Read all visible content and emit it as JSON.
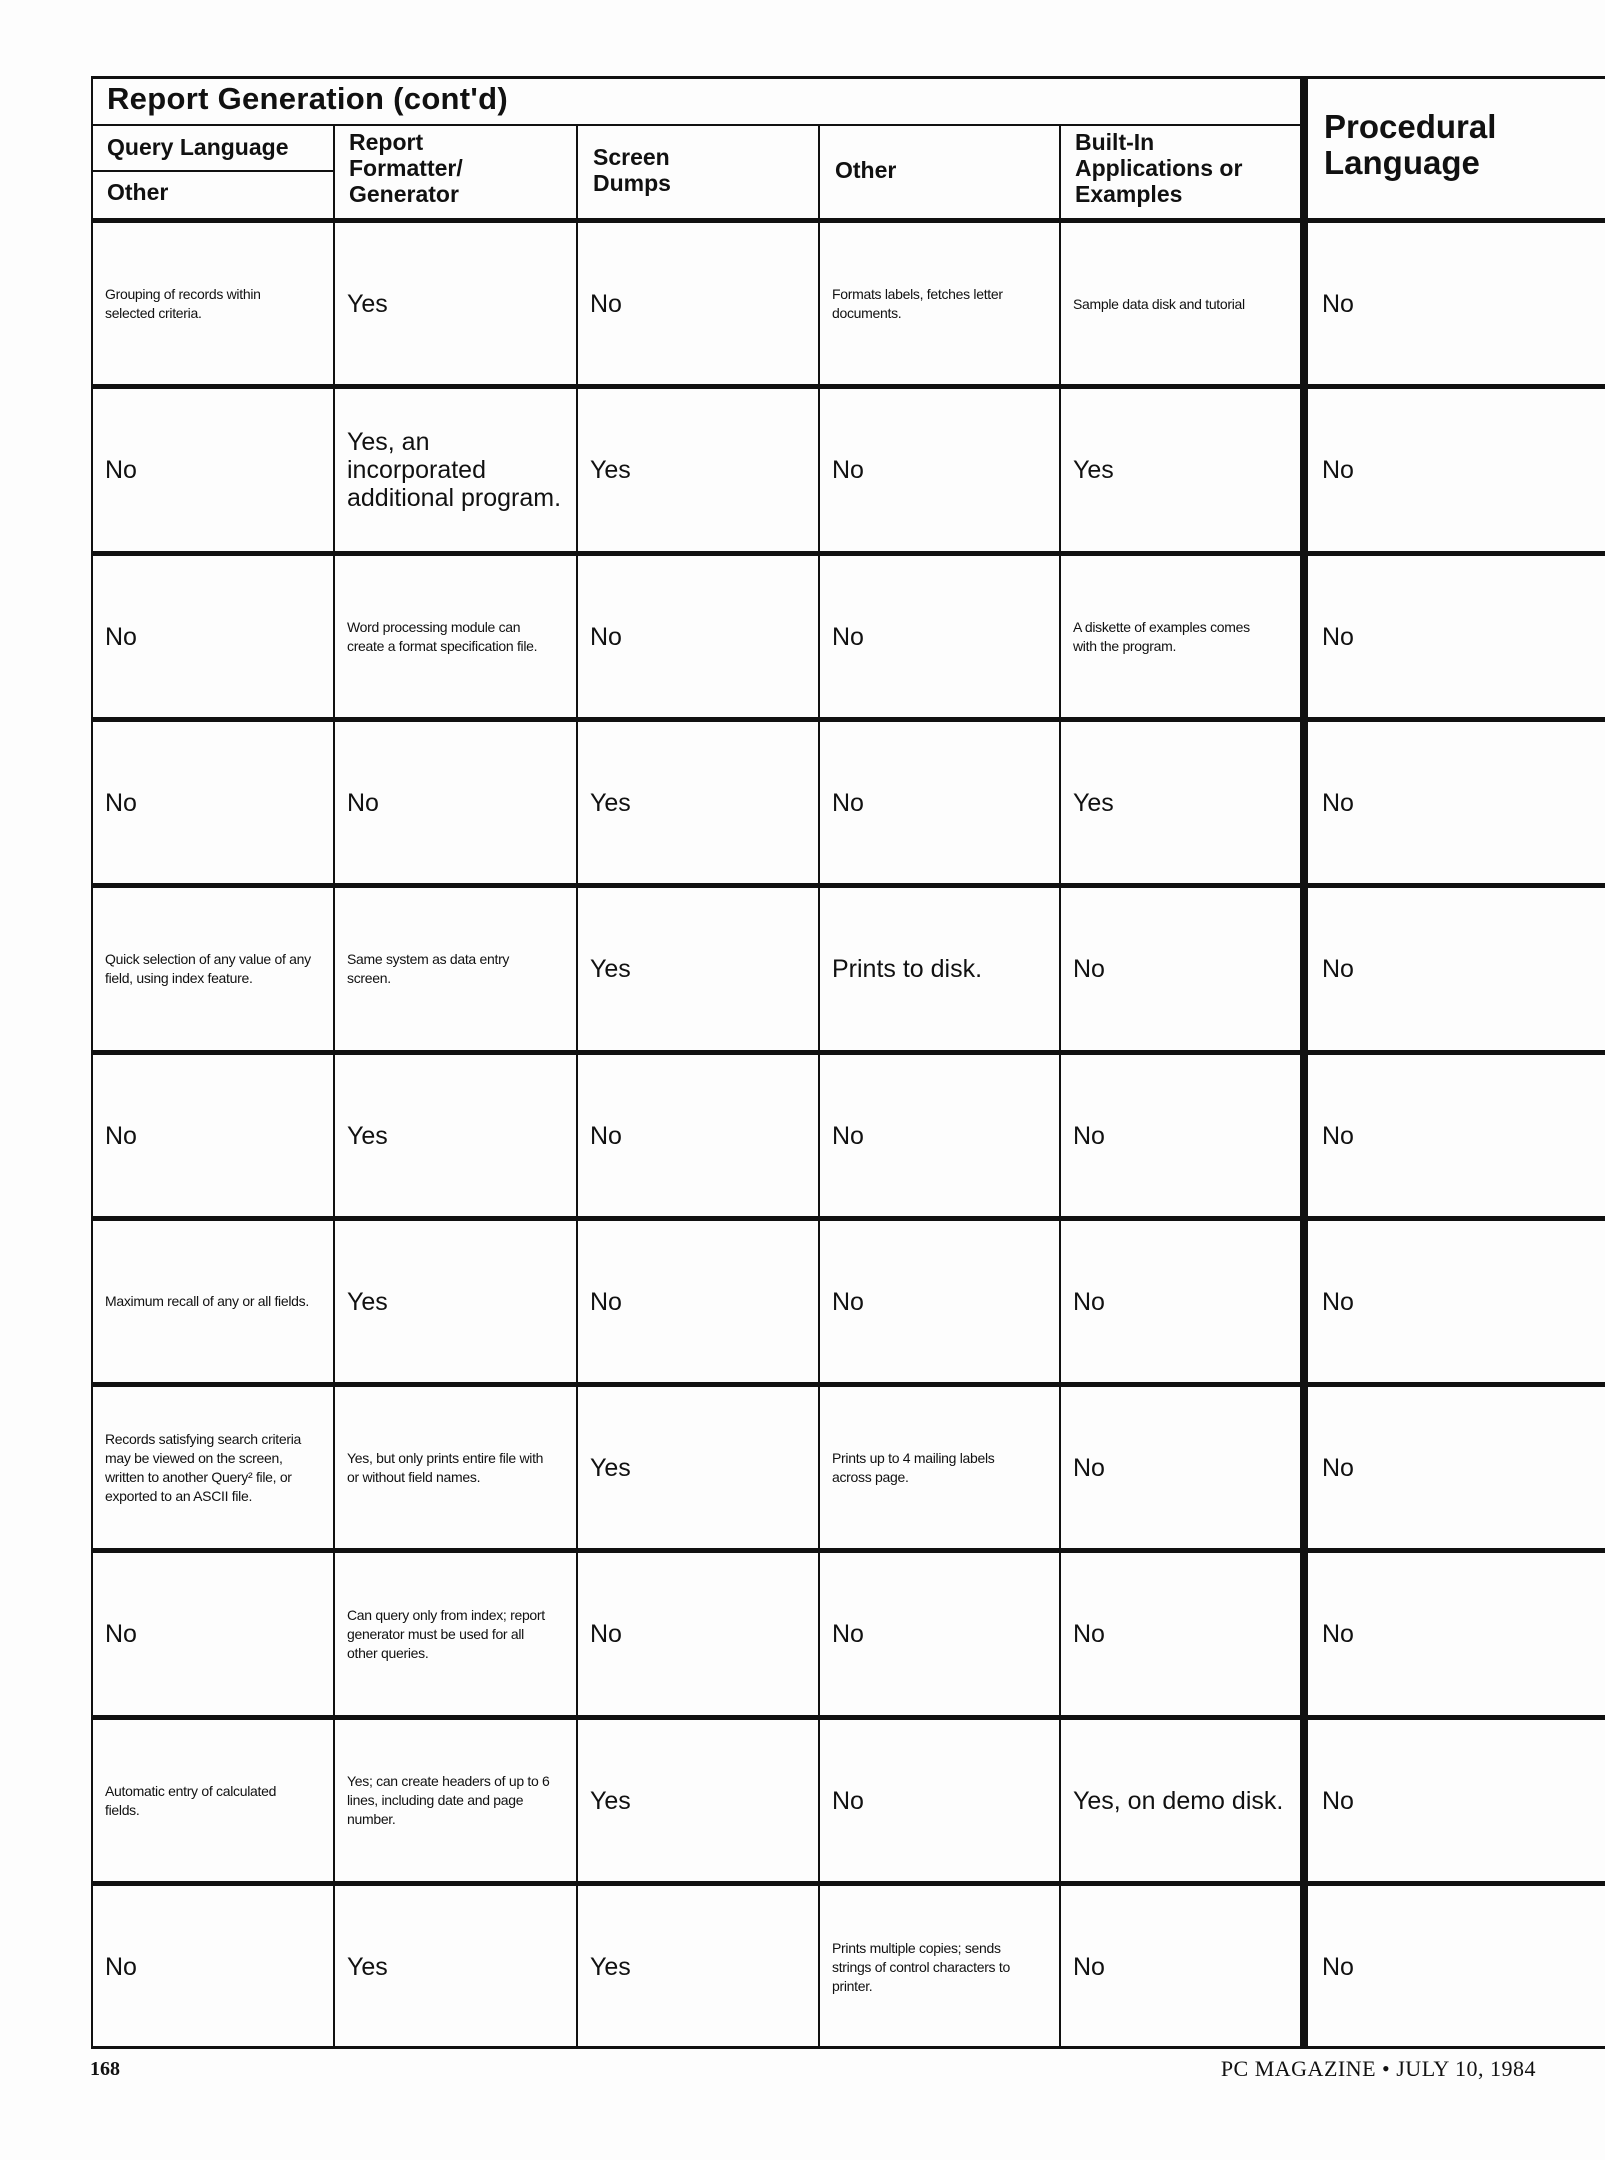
{
  "header": {
    "title": "Report Generation (cont'd)",
    "columns": [
      "Query Language",
      "Other",
      "Report Formatter/ Generator",
      "Screen Dumps",
      "Other",
      "Built-In Applications or Examples"
    ],
    "procedural": "Procedural Language"
  },
  "rows": [
    [
      "Grouping of records within selected criteria.",
      "Yes",
      "No",
      "Formats labels, fetches letter documents.",
      "Sample data disk and tutorial",
      "No"
    ],
    [
      "No",
      "Yes, an incorporated additional program.",
      "Yes",
      "No",
      "Yes",
      "No"
    ],
    [
      "No",
      "Word processing module can create a format specification file.",
      "No",
      "No",
      "A diskette of examples comes with the program.",
      "No"
    ],
    [
      "No",
      "No",
      "Yes",
      "No",
      "Yes",
      "No"
    ],
    [
      "Quick selection of any value of any field, using index feature.",
      "Same system as data entry screen.",
      "Yes",
      "Prints to disk.",
      "No",
      "No"
    ],
    [
      "No",
      "Yes",
      "No",
      "No",
      "No",
      "No"
    ],
    [
      "Maximum recall of any or all fields.",
      "Yes",
      "No",
      "No",
      "No",
      "No"
    ],
    [
      "Records satisfying search criteria may be viewed on the screen, written to another Query² file, or exported to an ASCII file.",
      "Yes, but only prints entire file with or without field names.",
      "Yes",
      "Prints up to 4 mailing labels across page.",
      "No",
      "No"
    ],
    [
      "No",
      "Can query only from index; report generator must be used for all other queries.",
      "No",
      "No",
      "No",
      "No"
    ],
    [
      "Automatic entry of calculated fields.",
      "Yes; can create headers of up to 6 lines, including date and page number.",
      "Yes",
      "No",
      "Yes, on demo disk.",
      "No"
    ],
    [
      "No",
      "Yes",
      "Yes",
      "Prints multiple copies; sends strings of control characters to printer.",
      "No",
      "No"
    ]
  ],
  "footer": {
    "page_number": "168",
    "publication": "PC MAGAZINE • JULY 10, 1984"
  }
}
